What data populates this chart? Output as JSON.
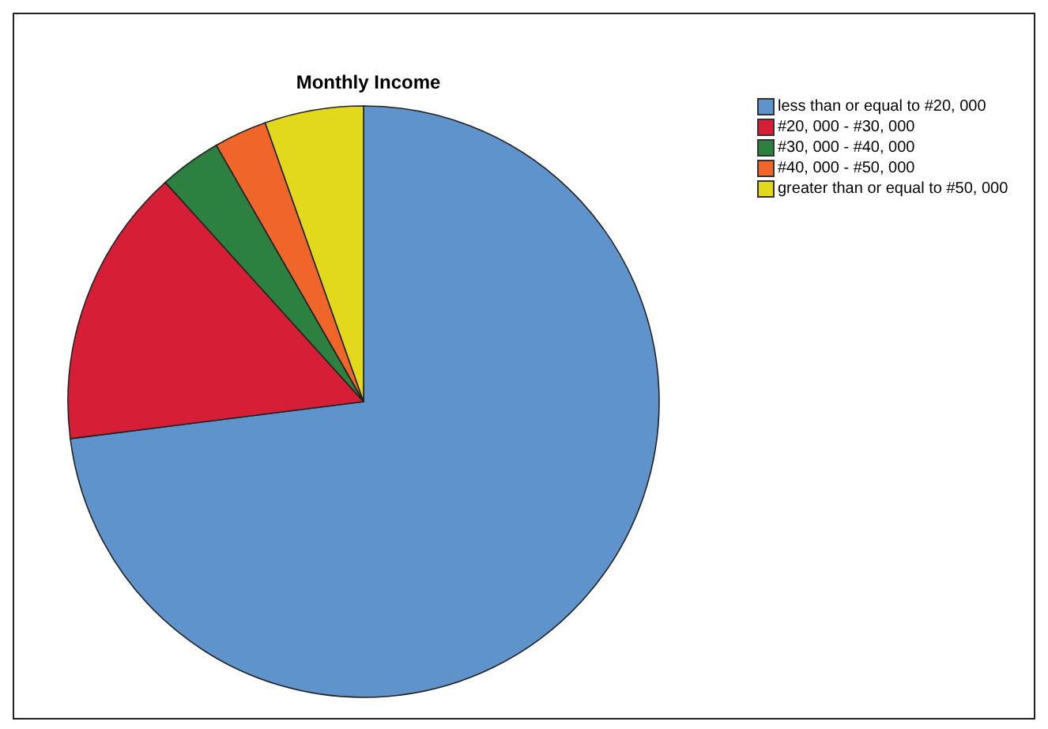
{
  "chart_data": {
    "type": "pie",
    "title": "Monthly Income",
    "categories": [
      "less than or equal to #20, 000",
      "#20, 000 - #30, 000",
      "#30, 000 - #40, 000",
      "#40, 000 - #50, 000",
      "greater than or equal to #50, 000"
    ],
    "values": [
      73.0,
      15.3,
      3.4,
      2.9,
      5.4
    ],
    "colors": [
      "#5f93cc",
      "#d61f36",
      "#2c8040",
      "#f0652a",
      "#e2d81c"
    ],
    "legend": "top right"
  }
}
